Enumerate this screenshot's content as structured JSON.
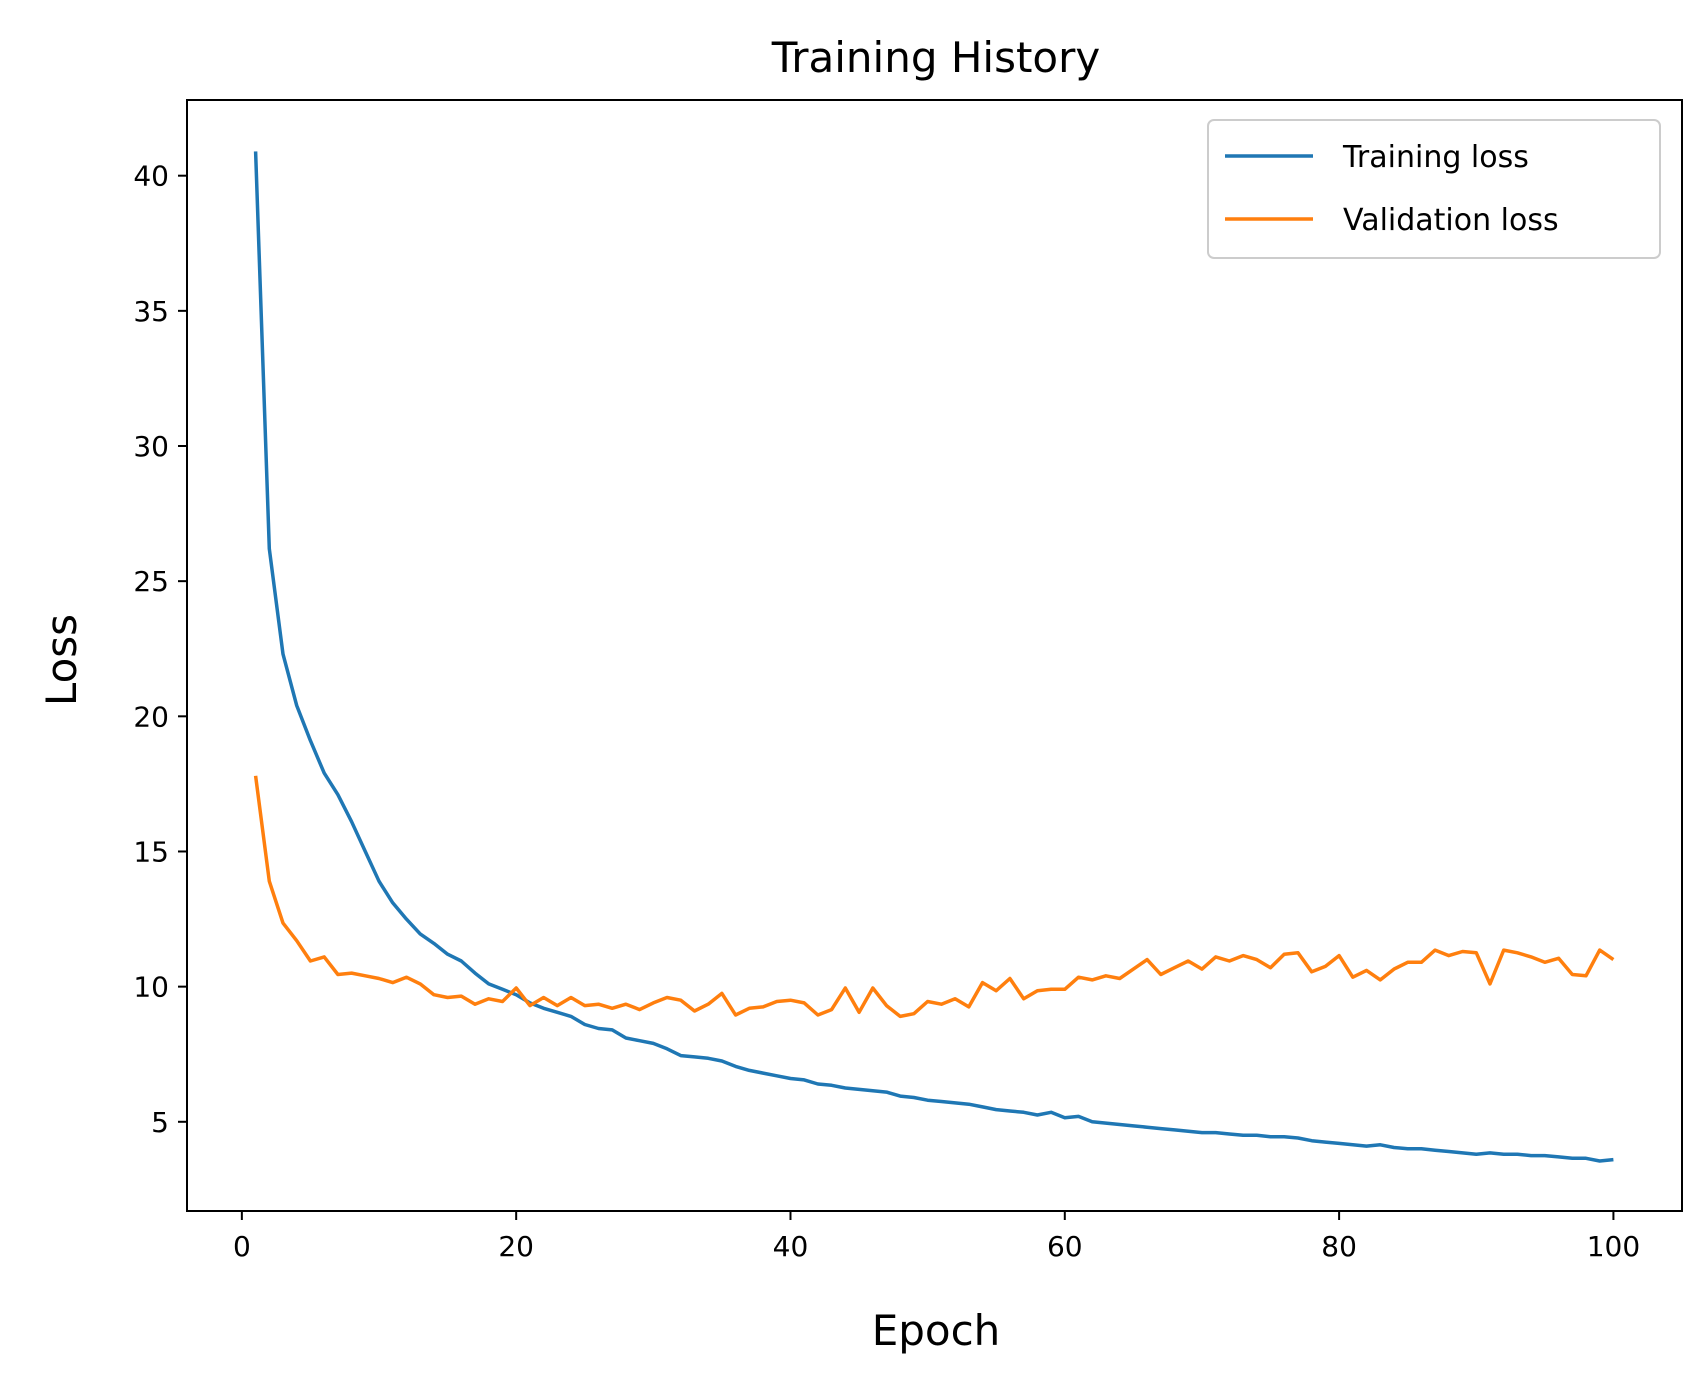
{
  "chart_data": {
    "type": "line",
    "title": "Training History",
    "xlabel": "Epoch",
    "ylabel": "Loss",
    "xlim": [
      -4,
      105
    ],
    "ylim": [
      1.7,
      42.8
    ],
    "xticks": [
      0,
      20,
      40,
      60,
      80,
      100
    ],
    "yticks": [
      5,
      10,
      15,
      20,
      25,
      30,
      35,
      40
    ],
    "grid": false,
    "legend_position": "top-right",
    "x": [
      1,
      2,
      3,
      4,
      5,
      6,
      7,
      8,
      9,
      10,
      11,
      12,
      13,
      14,
      15,
      16,
      17,
      18,
      19,
      20,
      21,
      22,
      23,
      24,
      25,
      26,
      27,
      28,
      29,
      30,
      31,
      32,
      33,
      34,
      35,
      36,
      37,
      38,
      39,
      40,
      41,
      42,
      43,
      44,
      45,
      46,
      47,
      48,
      49,
      50,
      51,
      52,
      53,
      54,
      55,
      56,
      57,
      58,
      59,
      60,
      61,
      62,
      63,
      64,
      65,
      66,
      67,
      68,
      69,
      70,
      71,
      72,
      73,
      74,
      75,
      76,
      77,
      78,
      79,
      80,
      81,
      82,
      83,
      84,
      85,
      86,
      87,
      88,
      89,
      90,
      91,
      92,
      93,
      94,
      95,
      96,
      97,
      98,
      99,
      100
    ],
    "series": [
      {
        "name": "Training loss",
        "color": "#1f77b4",
        "values": [
          40.9,
          26.2,
          22.3,
          20.4,
          19.1,
          17.9,
          17.1,
          16.1,
          15.0,
          13.9,
          13.1,
          12.5,
          11.95,
          11.6,
          11.2,
          10.95,
          10.5,
          10.1,
          9.9,
          9.7,
          9.4,
          9.2,
          9.05,
          8.9,
          8.6,
          8.45,
          8.4,
          8.1,
          8.0,
          7.9,
          7.7,
          7.45,
          7.4,
          7.35,
          7.25,
          7.05,
          6.9,
          6.8,
          6.7,
          6.6,
          6.55,
          6.4,
          6.35,
          6.25,
          6.2,
          6.15,
          6.1,
          5.95,
          5.9,
          5.8,
          5.75,
          5.7,
          5.65,
          5.55,
          5.45,
          5.4,
          5.35,
          5.25,
          5.35,
          5.15,
          5.2,
          5.0,
          4.95,
          4.9,
          4.85,
          4.8,
          4.75,
          4.7,
          4.65,
          4.6,
          4.6,
          4.55,
          4.5,
          4.5,
          4.45,
          4.45,
          4.4,
          4.3,
          4.25,
          4.2,
          4.15,
          4.1,
          4.15,
          4.05,
          4.0,
          4.0,
          3.95,
          3.9,
          3.85,
          3.8,
          3.85,
          3.8,
          3.8,
          3.75,
          3.75,
          3.7,
          3.65,
          3.65,
          3.55,
          3.6
        ]
      },
      {
        "name": "Validation loss",
        "color": "#ff7f0e",
        "values": [
          17.8,
          13.9,
          12.35,
          11.7,
          10.95,
          11.1,
          10.45,
          10.5,
          10.4,
          10.3,
          10.15,
          10.35,
          10.1,
          9.7,
          9.6,
          9.65,
          9.35,
          9.55,
          9.45,
          9.95,
          9.3,
          9.6,
          9.3,
          9.6,
          9.3,
          9.35,
          9.2,
          9.35,
          9.15,
          9.4,
          9.6,
          9.5,
          9.1,
          9.35,
          9.75,
          8.95,
          9.2,
          9.25,
          9.45,
          9.5,
          9.4,
          8.95,
          9.15,
          9.95,
          9.05,
          9.95,
          9.3,
          8.9,
          9.0,
          9.45,
          9.35,
          9.55,
          9.25,
          10.15,
          9.85,
          10.3,
          9.55,
          9.85,
          9.9,
          9.9,
          10.35,
          10.25,
          10.4,
          10.3,
          10.65,
          11.0,
          10.45,
          10.7,
          10.95,
          10.65,
          11.1,
          10.95,
          11.15,
          11.0,
          10.7,
          11.2,
          11.25,
          10.55,
          10.75,
          11.15,
          10.35,
          10.6,
          10.25,
          10.65,
          10.9,
          10.9,
          11.35,
          11.15,
          11.3,
          11.25,
          10.1,
          11.35,
          11.25,
          11.1,
          10.9,
          11.05,
          10.45,
          10.4,
          11.35,
          11.0
        ]
      }
    ]
  }
}
